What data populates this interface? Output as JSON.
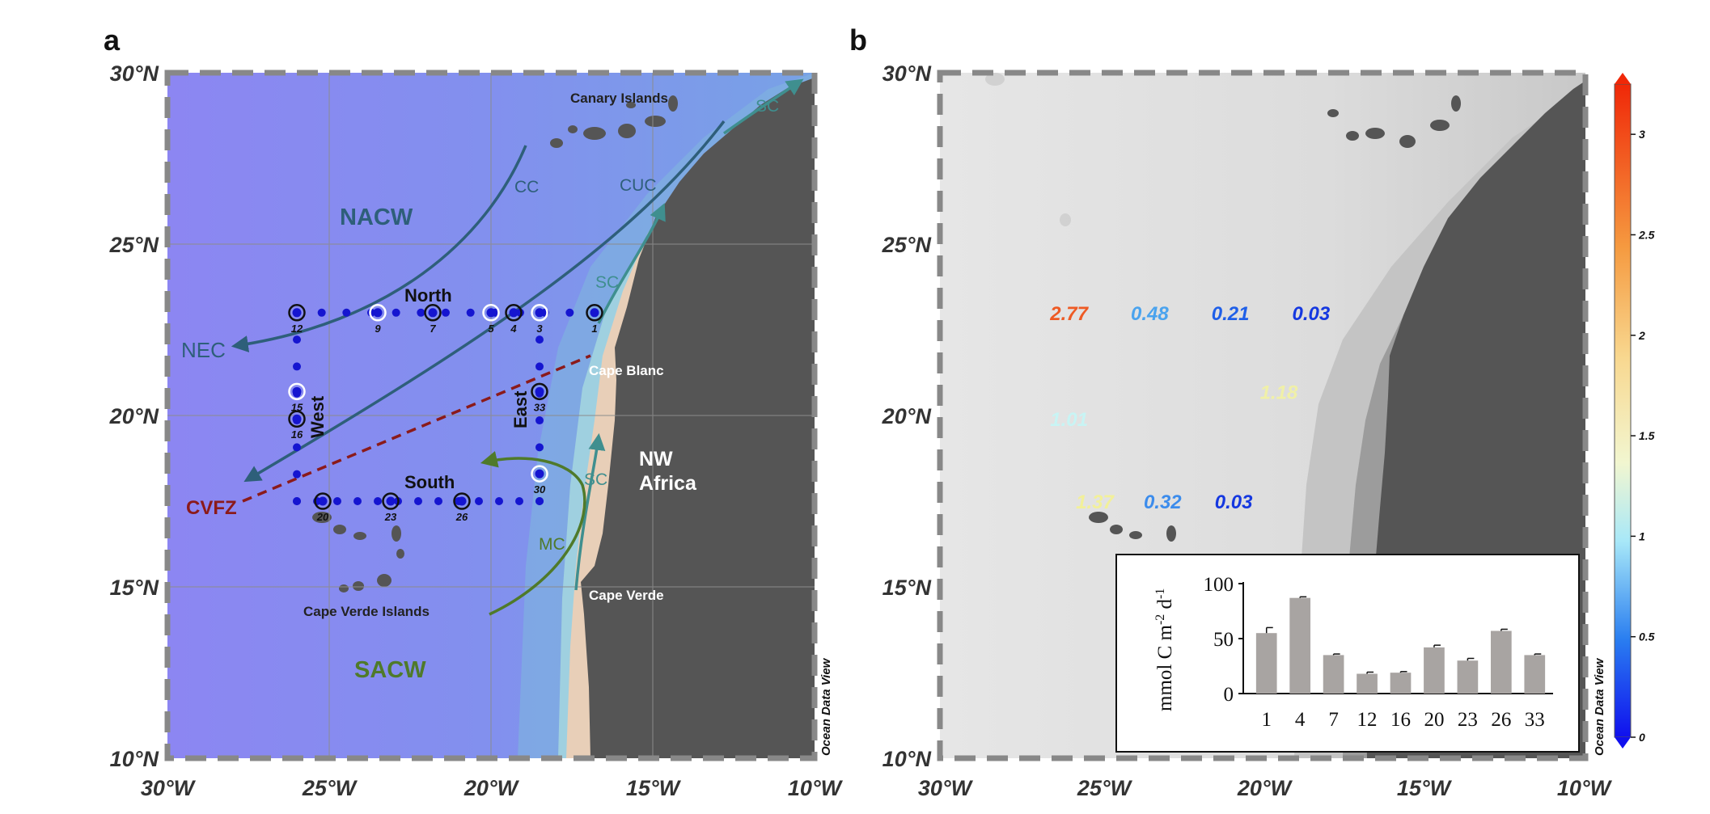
{
  "panel_a": {
    "letter": "a",
    "lat_labels": [
      "30°N",
      "25°N",
      "20°N",
      "15°N",
      "10°N"
    ],
    "lon_labels": [
      "30°W",
      "25°W",
      "20°W",
      "15°W",
      "10°W"
    ],
    "place_labels": {
      "canary": "Canary Islands",
      "cape_blanc": "Cape Blanc",
      "cape_verde": "Cape Verde",
      "cape_verde_islands": "Cape Verde Islands",
      "nw_africa_line1": "NW",
      "nw_africa_line2": "Africa"
    },
    "currents": {
      "cc": "CC",
      "cuc": "CUC",
      "sc": "SC",
      "nec": "NEC",
      "mc": "MC"
    },
    "water_masses": {
      "nacw": "NACW",
      "sacw": "SACW",
      "cvfz": "CVFZ"
    },
    "transects": {
      "north": "North",
      "west": "West",
      "east": "East",
      "south": "South"
    },
    "stations": [
      {
        "id": "12",
        "lon": -26.0,
        "lat": 23.0
      },
      {
        "id": "9",
        "lon": -23.5,
        "lat": 23.0
      },
      {
        "id": "7",
        "lon": -21.8,
        "lat": 23.0
      },
      {
        "id": "5",
        "lon": -20.0,
        "lat": 23.0
      },
      {
        "id": "4",
        "lon": -19.3,
        "lat": 23.0
      },
      {
        "id": "3",
        "lon": -18.5,
        "lat": 23.0
      },
      {
        "id": "1",
        "lon": -16.8,
        "lat": 23.0
      },
      {
        "id": "15",
        "lon": -26.0,
        "lat": 20.7
      },
      {
        "id": "16",
        "lon": -26.0,
        "lat": 19.9
      },
      {
        "id": "33",
        "lon": -18.5,
        "lat": 20.7
      },
      {
        "id": "30",
        "lon": -18.5,
        "lat": 18.3
      },
      {
        "id": "20",
        "lon": -25.2,
        "lat": 17.5
      },
      {
        "id": "23",
        "lon": -23.1,
        "lat": 17.5
      },
      {
        "id": "26",
        "lon": -20.9,
        "lat": 17.5
      }
    ],
    "odv": "Ocean Data View",
    "colors": {
      "ocean_deep": "#8a8af0",
      "ocean_mid": "#7b8fe8",
      "shelf": "#e8cfb8",
      "land": "#555555",
      "current": "#2e5f7a",
      "mc": "#4f7a2a",
      "cvfz": "#8b1a1a",
      "station": "#1515d0"
    }
  },
  "panel_b": {
    "letter": "b",
    "lat_labels": [
      "30°N",
      "25°N",
      "20°N",
      "15°N",
      "10°N"
    ],
    "lon_labels": [
      "30°W",
      "25°W",
      "20°W",
      "15°W",
      "10°W"
    ],
    "values": [
      {
        "text": "2.77",
        "lon": -26.0,
        "lat": 23.0,
        "color": "#ee5a24"
      },
      {
        "text": "0.48",
        "lon": -23.5,
        "lat": 23.0,
        "color": "#4aa3ee"
      },
      {
        "text": "0.21",
        "lon": -21.0,
        "lat": 23.0,
        "color": "#1f5fe8"
      },
      {
        "text": "0.03",
        "lon": -18.5,
        "lat": 23.0,
        "color": "#1538e0"
      },
      {
        "text": "1.18",
        "lon": -19.5,
        "lat": 20.7,
        "color": "#f0f0a8"
      },
      {
        "text": "1.01",
        "lon": -26.0,
        "lat": 19.9,
        "color": "#c8f4f4"
      },
      {
        "text": "1.37",
        "lon": -25.2,
        "lat": 17.5,
        "color": "#f2f09a"
      },
      {
        "text": "0.32",
        "lon": -23.1,
        "lat": 17.5,
        "color": "#3c8cec"
      },
      {
        "text": "0.03",
        "lon": -20.9,
        "lat": 17.5,
        "color": "#1538e0"
      }
    ],
    "colorbar": {
      "ticks": [
        "3",
        "2.5",
        "2",
        "1.5",
        "1",
        "0.5",
        "0"
      ],
      "min": 0,
      "max": 3.25
    },
    "odv": "Ocean Data View"
  },
  "chart_data": {
    "type": "bar",
    "categories": [
      "1",
      "4",
      "7",
      "12",
      "16",
      "20",
      "23",
      "26",
      "33"
    ],
    "values": [
      55,
      87,
      35,
      18,
      19,
      42,
      30,
      57,
      35
    ],
    "errors": [
      5,
      1,
      1,
      1.5,
      1,
      2,
      2,
      1.5,
      1
    ],
    "ylabel": "mmol C m-2 d-1",
    "ylabel_main": "mmol C m",
    "ylabel_sup1": "-2",
    "ylabel_mid": " d",
    "ylabel_sup2": "-1",
    "yticks": [
      "0",
      "50",
      "100"
    ],
    "ylim": [
      0,
      100
    ],
    "bar_color": "#a8a4a2"
  }
}
